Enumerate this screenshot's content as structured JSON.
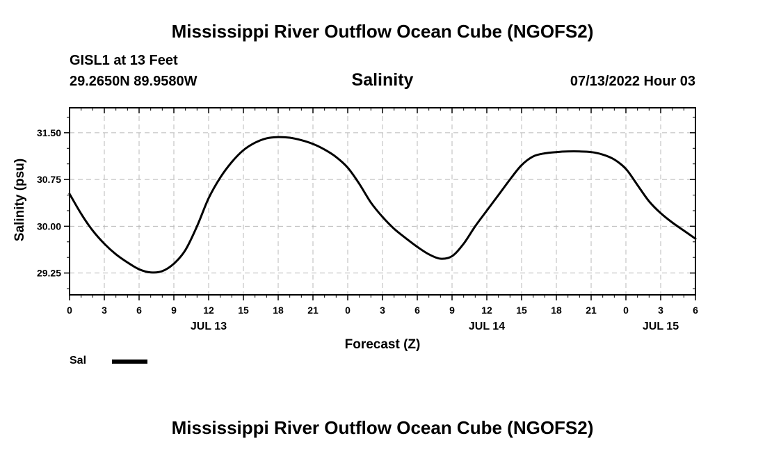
{
  "header": {
    "title": "Mississippi River Outflow Ocean Cube (NGOFS2)",
    "station": "GISL1 at 13 Feet",
    "coords": "29.2650N  89.9580W",
    "subtitle": "Salinity",
    "datetime": "07/13/2022 Hour 03"
  },
  "footer": {
    "title": "Mississippi River Outflow Ocean Cube (NGOFS2)"
  },
  "legend": {
    "label": "Sal",
    "color": "#000000"
  },
  "chart_data": {
    "type": "line",
    "title": "Salinity",
    "xlabel": "Forecast (Z)",
    "ylabel": "Salinity (psu)",
    "xlim": [
      0,
      54
    ],
    "ylim": [
      28.9,
      31.9
    ],
    "x_ticks": [
      0,
      3,
      6,
      9,
      12,
      15,
      18,
      21,
      24,
      27,
      30,
      33,
      36,
      39,
      42,
      45,
      48,
      51,
      54
    ],
    "x_tick_labels": [
      "0",
      "3",
      "6",
      "9",
      "12",
      "15",
      "18",
      "21",
      "0",
      "3",
      "6",
      "9",
      "12",
      "15",
      "18",
      "21",
      "0",
      "3",
      "6"
    ],
    "date_labels": [
      {
        "x": 12,
        "label": "JUL 13"
      },
      {
        "x": 36,
        "label": "JUL 14"
      },
      {
        "x": 51,
        "label": "JUL 15"
      }
    ],
    "y_ticks": [
      29.25,
      30.0,
      30.75,
      31.5
    ],
    "y_tick_labels": [
      "29.25",
      "30.00",
      "30.75",
      "31.50"
    ],
    "grid": true,
    "series": [
      {
        "name": "Sal",
        "color": "#000000",
        "x": [
          0,
          1,
          2,
          3,
          4,
          5,
          6,
          7,
          8,
          9,
          10,
          11,
          12,
          13,
          14,
          15,
          16,
          17,
          18,
          19,
          20,
          21,
          22,
          23,
          24,
          25,
          26,
          27,
          28,
          29,
          30,
          31,
          32,
          33,
          34,
          35,
          36,
          37,
          38,
          39,
          40,
          41,
          42,
          43,
          44,
          45,
          46,
          47,
          48,
          49,
          50,
          51,
          52,
          53,
          54
        ],
        "values": [
          30.52,
          30.2,
          29.93,
          29.72,
          29.55,
          29.42,
          29.31,
          29.26,
          29.28,
          29.4,
          29.62,
          30.0,
          30.45,
          30.78,
          31.03,
          31.22,
          31.34,
          31.41,
          31.43,
          31.42,
          31.38,
          31.32,
          31.23,
          31.11,
          30.94,
          30.68,
          30.38,
          30.15,
          29.96,
          29.81,
          29.67,
          29.55,
          29.48,
          29.52,
          29.72,
          30.0,
          30.25,
          30.5,
          30.75,
          30.98,
          31.12,
          31.17,
          31.19,
          31.2,
          31.2,
          31.19,
          31.15,
          31.07,
          30.92,
          30.66,
          30.4,
          30.21,
          30.06,
          29.93,
          29.8
        ]
      }
    ]
  }
}
